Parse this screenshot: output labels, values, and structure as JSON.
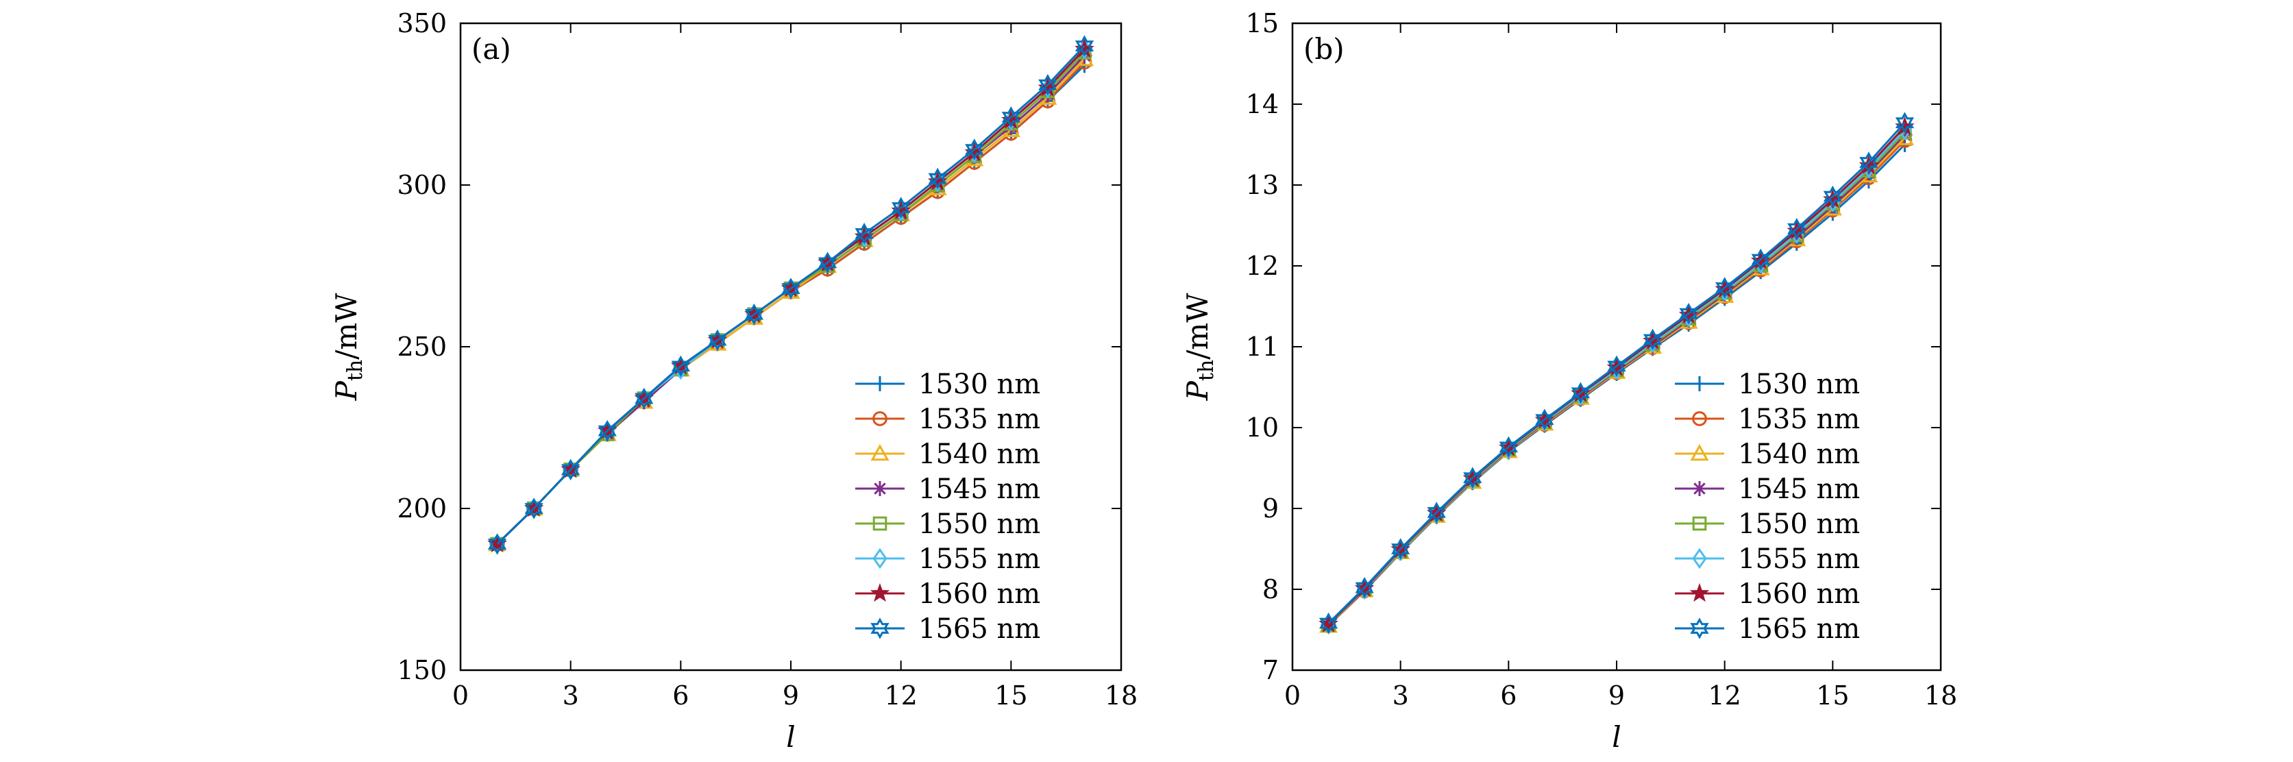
{
  "chart_data": [
    {
      "type": "line",
      "panel_label": "(a)",
      "xlabel": "l",
      "ylabel_main": "P",
      "ylabel_sub": "th",
      "ylabel_unit": "/mW",
      "xlim": [
        0,
        18
      ],
      "ylim": [
        150,
        350
      ],
      "xticks": [
        "0",
        "3",
        "6",
        "9",
        "12",
        "15",
        "18"
      ],
      "yticks": [
        "150",
        "200",
        "250",
        "300",
        "350"
      ],
      "legend_position": "bottom-right",
      "x": [
        1,
        2,
        3,
        4,
        5,
        6,
        7,
        8,
        9,
        10,
        11,
        12,
        13,
        14,
        15,
        16,
        17
      ],
      "series": [
        {
          "name": "1530 nm",
          "color": "#0072BD",
          "marker": "plus",
          "values": [
            189,
            200,
            212,
            223,
            233,
            243,
            251,
            259,
            267,
            274,
            282,
            290,
            298,
            307,
            316,
            326,
            337
          ]
        },
        {
          "name": "1535 nm",
          "color": "#D95319",
          "marker": "circle",
          "values": [
            189,
            200,
            212,
            223,
            233,
            243,
            251,
            259,
            267,
            274,
            282,
            290,
            298,
            307,
            316,
            326,
            338
          ]
        },
        {
          "name": "1540 nm",
          "color": "#EDB120",
          "marker": "triangle",
          "values": [
            189,
            200,
            212,
            223,
            233,
            243,
            251,
            259,
            267,
            275,
            283,
            291,
            299,
            308,
            317,
            327,
            339
          ]
        },
        {
          "name": "1545 nm",
          "color": "#7E2F8E",
          "marker": "asterisk",
          "values": [
            189,
            200,
            212,
            223,
            233,
            243,
            252,
            260,
            268,
            275,
            283,
            291,
            300,
            309,
            318,
            328,
            340
          ]
        },
        {
          "name": "1550 nm",
          "color": "#77AC30",
          "marker": "square",
          "values": [
            189,
            200,
            212,
            223,
            234,
            243,
            252,
            260,
            268,
            275,
            283,
            291,
            300,
            309,
            319,
            329,
            341
          ]
        },
        {
          "name": "1555 nm",
          "color": "#4DBEEE",
          "marker": "diamond",
          "values": [
            189,
            200,
            212,
            224,
            234,
            243,
            252,
            260,
            268,
            276,
            284,
            292,
            301,
            310,
            320,
            330,
            342
          ]
        },
        {
          "name": "1560 nm",
          "color": "#A2142F",
          "marker": "star",
          "values": [
            189,
            200,
            212,
            224,
            234,
            244,
            252,
            260,
            268,
            276,
            284,
            292,
            301,
            310,
            320,
            330,
            342
          ]
        },
        {
          "name": "1565 nm",
          "color": "#0072BD",
          "marker": "hexagram",
          "values": [
            189,
            200,
            212,
            224,
            234,
            244,
            252,
            260,
            268,
            276,
            285,
            293,
            302,
            311,
            321,
            331,
            343
          ]
        }
      ]
    },
    {
      "type": "line",
      "panel_label": "(b)",
      "xlabel": "l",
      "ylabel_main": "P",
      "ylabel_sub": "th",
      "ylabel_unit": "/mW",
      "xlim": [
        0,
        18
      ],
      "ylim": [
        7,
        15
      ],
      "xticks": [
        "0",
        "3",
        "6",
        "9",
        "12",
        "15",
        "18"
      ],
      "yticks": [
        "7",
        "8",
        "9",
        "10",
        "11",
        "12",
        "13",
        "14",
        "15"
      ],
      "legend_position": "bottom-right",
      "x": [
        1,
        2,
        3,
        4,
        5,
        6,
        7,
        8,
        9,
        10,
        11,
        12,
        13,
        14,
        15,
        16,
        17
      ],
      "series": [
        {
          "name": "1530 nm",
          "color": "#0072BD",
          "marker": "plus",
          "values": [
            7.55,
            7.98,
            8.45,
            8.9,
            9.32,
            9.7,
            10.03,
            10.35,
            10.67,
            10.98,
            11.28,
            11.6,
            11.93,
            12.28,
            12.65,
            13.05,
            13.5
          ]
        },
        {
          "name": "1535 nm",
          "color": "#D95319",
          "marker": "circle",
          "values": [
            7.55,
            7.98,
            8.46,
            8.91,
            9.33,
            9.71,
            10.04,
            10.36,
            10.68,
            10.99,
            11.3,
            11.62,
            11.95,
            12.31,
            12.69,
            13.09,
            13.55
          ]
        },
        {
          "name": "1540 nm",
          "color": "#EDB120",
          "marker": "triangle",
          "values": [
            7.55,
            7.99,
            8.46,
            8.91,
            9.33,
            9.71,
            10.05,
            10.37,
            10.69,
            11.0,
            11.31,
            11.63,
            11.97,
            12.33,
            12.71,
            13.12,
            13.58
          ]
        },
        {
          "name": "1545 nm",
          "color": "#7E2F8E",
          "marker": "asterisk",
          "values": [
            7.56,
            7.99,
            8.47,
            8.92,
            9.34,
            9.72,
            10.06,
            10.38,
            10.7,
            11.01,
            11.33,
            11.65,
            11.99,
            12.35,
            12.74,
            13.15,
            13.62
          ]
        },
        {
          "name": "1550 nm",
          "color": "#77AC30",
          "marker": "square",
          "values": [
            7.56,
            8.0,
            8.47,
            8.93,
            9.35,
            9.73,
            10.07,
            10.39,
            10.71,
            11.03,
            11.35,
            11.67,
            12.01,
            12.38,
            12.77,
            13.18,
            13.65
          ]
        },
        {
          "name": "1555 nm",
          "color": "#4DBEEE",
          "marker": "diamond",
          "values": [
            7.57,
            8.0,
            8.48,
            8.94,
            9.36,
            9.74,
            10.08,
            10.4,
            10.72,
            11.05,
            11.37,
            11.69,
            12.03,
            12.4,
            12.79,
            13.21,
            13.68
          ]
        },
        {
          "name": "1560 nm",
          "color": "#A2142F",
          "marker": "star",
          "values": [
            7.57,
            8.01,
            8.49,
            8.94,
            9.37,
            9.75,
            10.09,
            10.42,
            10.74,
            11.07,
            11.39,
            11.71,
            12.06,
            12.43,
            12.82,
            13.24,
            13.72
          ]
        },
        {
          "name": "1565 nm",
          "color": "#0072BD",
          "marker": "hexagram",
          "values": [
            7.58,
            8.02,
            8.5,
            8.95,
            9.38,
            9.76,
            10.1,
            10.43,
            10.76,
            11.09,
            11.41,
            11.73,
            12.08,
            12.46,
            12.86,
            13.28,
            13.77
          ]
        }
      ]
    }
  ]
}
